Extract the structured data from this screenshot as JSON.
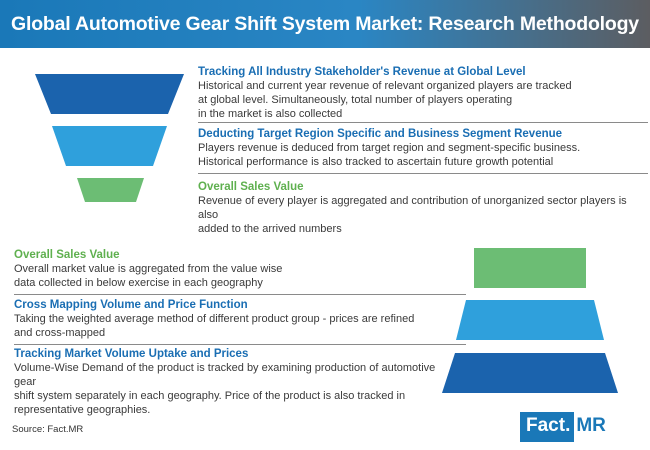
{
  "title": "Global Automotive Gear Shift System Market: Research Methodology",
  "colors": {
    "dark_blue": "#1b63ad",
    "light_blue": "#2fa0dc",
    "green": "#6cbd74",
    "title_blue": "#1a6eb3",
    "title_green": "#5fb04f"
  },
  "top_funnel": [
    {
      "title": "Tracking All Industry Stakeholder's Revenue at Global Level",
      "body": "Historical and current year revenue of relevant organized players are tracked\nat global level. Simultaneously, total number of players operating\nin the market is also collected"
    },
    {
      "title": "Deducting Target Region Specific and Business Segment Revenue",
      "body": "Players revenue is deduced from target region and segment-specific business.\nHistorical performance is also tracked to ascertain future growth potential"
    },
    {
      "title": "Overall Sales Value",
      "body": "Revenue of every player is aggregated and contribution of unorganized sector players is also\nadded to the arrived numbers"
    }
  ],
  "bottom_funnel": [
    {
      "title": "Overall Sales Value",
      "body": "Overall market value is aggregated from the value wise\ndata collected in below exercise in each geography"
    },
    {
      "title": "Cross Mapping Volume and Price Function",
      "body": "Taking the weighted average method of different product group - prices are refined\nand cross-mapped"
    },
    {
      "title": "Tracking Market Volume Uptake and Prices",
      "body": "Volume-Wise Demand of the product is tracked by examining production of automotive gear\nshift system separately in each geography. Price of the product is also tracked in\nrepresentative geographies."
    }
  ],
  "source": "Source: Fact.MR",
  "logo": {
    "part1": "Fact.",
    "part2": "MR"
  }
}
